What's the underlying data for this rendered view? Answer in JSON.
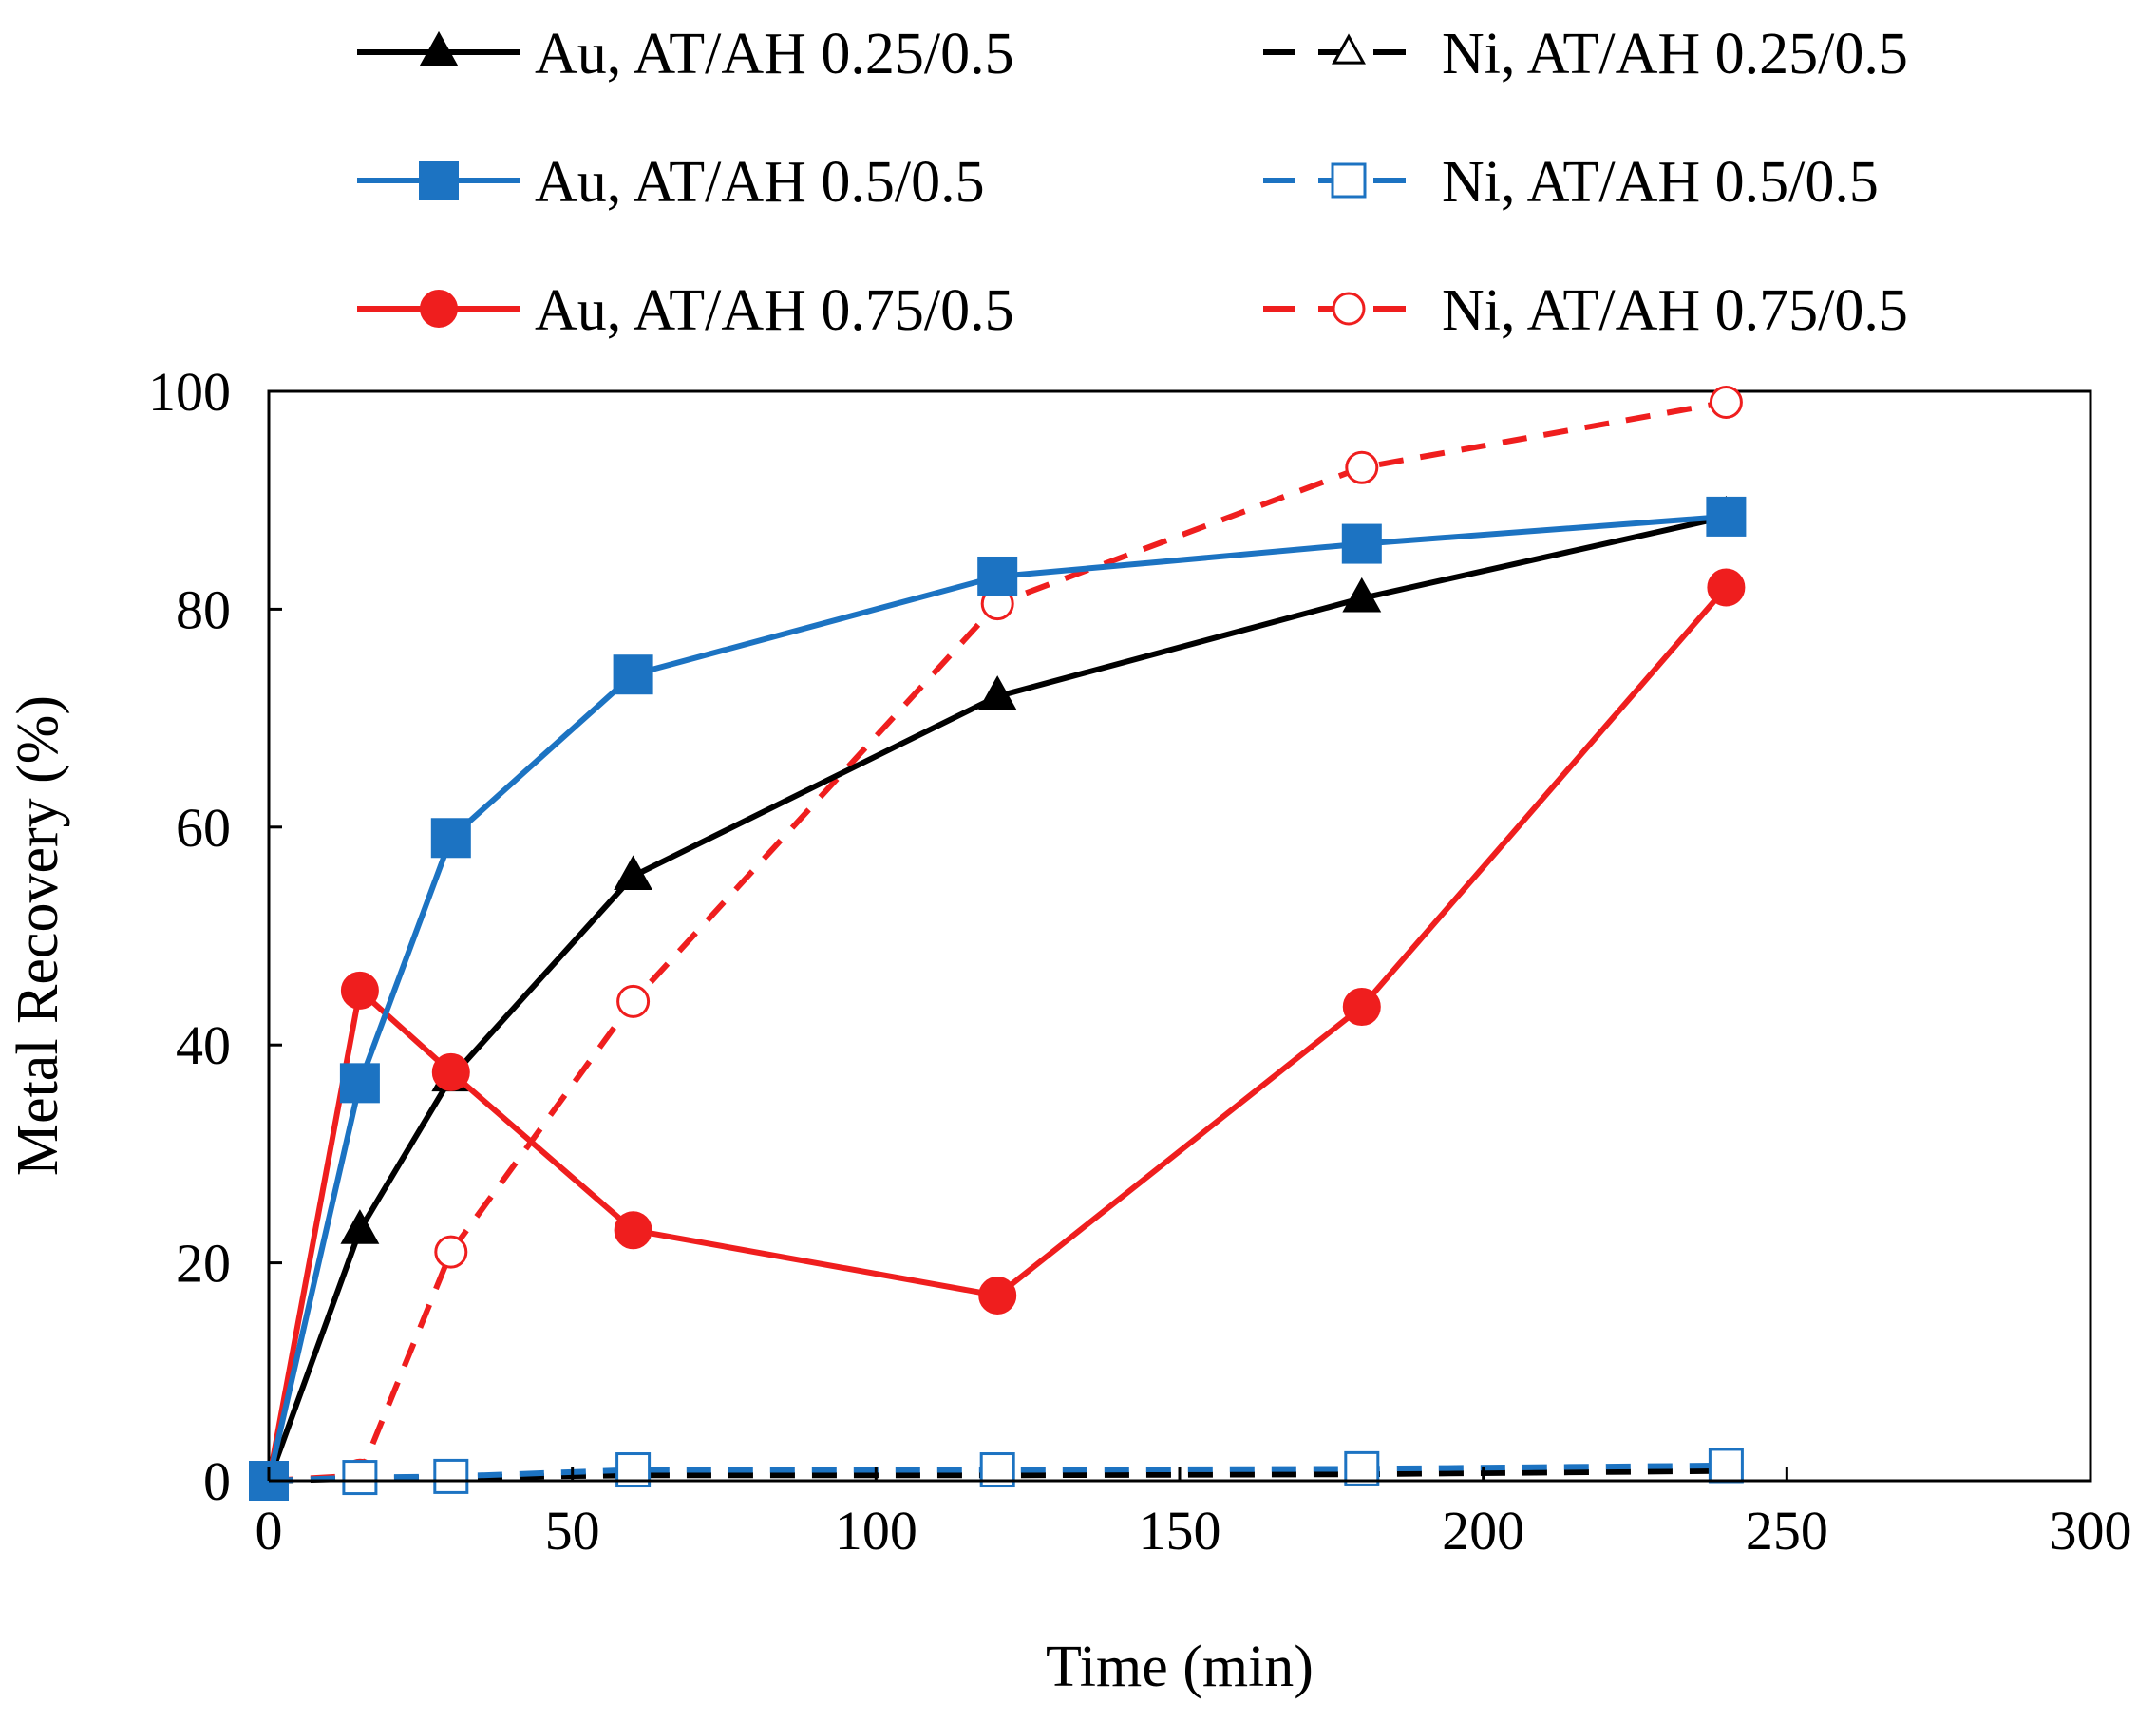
{
  "chart_data": {
    "type": "line",
    "title": "",
    "xlabel": "Time (min)",
    "ylabel": "Metal Recovery (%)",
    "xlim": [
      0,
      300
    ],
    "ylim": [
      0,
      100
    ],
    "xticks": [
      0,
      50,
      100,
      150,
      200,
      250,
      300
    ],
    "yticks": [
      0,
      20,
      40,
      60,
      80,
      100
    ],
    "grid": false,
    "legend_position": "top",
    "series": [
      {
        "name": "Au, AT/AH 0.25/0.5",
        "color": "#000000",
        "dash": "solid",
        "marker": "triangle",
        "filled": true,
        "x": [
          0,
          15,
          30,
          60,
          120,
          180,
          240
        ],
        "values": [
          0,
          23,
          37,
          55.5,
          72,
          81,
          88.5
        ]
      },
      {
        "name": "Au, AT/AH 0.5/0.5",
        "color": "#1c73c2",
        "dash": "solid",
        "marker": "square",
        "filled": true,
        "x": [
          0,
          15,
          30,
          60,
          120,
          180,
          240
        ],
        "values": [
          0,
          36.5,
          59,
          74,
          83,
          86,
          88.5
        ]
      },
      {
        "name": "Au, AT/AH 0.75/0.5",
        "color": "#ef1e1e",
        "dash": "solid",
        "marker": "circle",
        "filled": true,
        "x": [
          0,
          15,
          30,
          60,
          120,
          180,
          240
        ],
        "values": [
          0,
          45,
          37.5,
          23,
          17,
          43.5,
          82
        ]
      },
      {
        "name": "Ni, AT/AH 0.25/0.5",
        "color": "#000000",
        "dash": "dashed",
        "marker": "triangle",
        "filled": false,
        "x": [
          0,
          15,
          30,
          60,
          120,
          180,
          240
        ],
        "values": [
          0,
          0.2,
          0.3,
          0.5,
          0.5,
          0.6,
          0.9
        ]
      },
      {
        "name": "Ni, AT/AH 0.5/0.5",
        "color": "#1c73c2",
        "dash": "dashed",
        "marker": "square",
        "filled": false,
        "x": [
          0,
          15,
          30,
          60,
          120,
          180,
          240
        ],
        "values": [
          0,
          0.3,
          0.4,
          1,
          1,
          1.1,
          1.4
        ]
      },
      {
        "name": "Ni, AT/AH 0.75/0.5",
        "color": "#ef1e1e",
        "dash": "dashed",
        "marker": "circle",
        "filled": false,
        "x": [
          0,
          15,
          30,
          60,
          120,
          180,
          240
        ],
        "values": [
          0,
          0.5,
          21,
          44,
          80.5,
          93,
          99
        ]
      }
    ]
  }
}
